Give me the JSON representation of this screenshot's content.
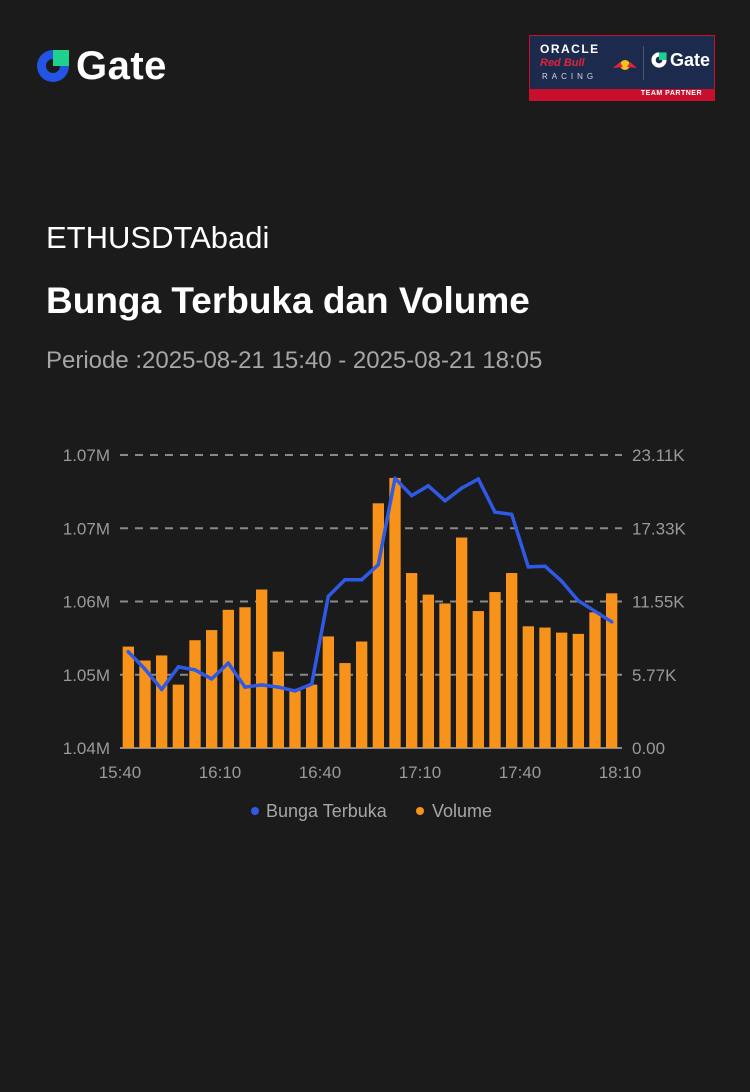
{
  "brand": {
    "name": "Gate",
    "icon": "gate-logo-icon",
    "color": "#2354e6",
    "accent": "#1fd18f"
  },
  "partner_badge": {
    "oracle": "ORACLE",
    "redbull": "Red Bull",
    "racing": "RACING",
    "gate": "Gate",
    "team_partner": "TEAM PARTNER"
  },
  "header": {
    "pair": "ETHUSDTAbadi",
    "title": "Bunga Terbuka dan Volume",
    "period": "Periode :2025-08-21 15:40 - 2025-08-21 18:05"
  },
  "chart_data": {
    "type": "bar+line",
    "x_ticks": [
      "15:40",
      "16:10",
      "16:40",
      "17:10",
      "17:40",
      "18:10"
    ],
    "y_left_ticks": [
      "1.04M",
      "1.05M",
      "1.06M",
      "1.07M",
      "1.07M"
    ],
    "y_right_ticks": [
      "0.00",
      "5.77K",
      "11.55K",
      "17.33K",
      "23.11K"
    ],
    "y_right_range": [
      0,
      23110
    ],
    "grid": "dashed-horizontal",
    "legend_position": "bottom",
    "colors": {
      "open_interest": "#2f5ae6",
      "volume": "#f7931a"
    },
    "series": [
      {
        "name": "Bunga Terbuka",
        "type": "line",
        "axis": "left",
        "values": [
          1.0528,
          1.0505,
          1.0478,
          1.0508,
          1.0504,
          1.0492,
          1.0513,
          1.0481,
          1.0484,
          1.0481,
          1.0476,
          1.0485,
          1.0602,
          1.0624,
          1.0624,
          1.0644,
          1.0759,
          1.0736,
          1.0749,
          1.0729,
          1.0746,
          1.0758,
          1.0714,
          1.0711,
          1.0641,
          1.0642,
          1.0622,
          1.0596,
          1.0582,
          1.0568
        ]
      },
      {
        "name": "Volume",
        "type": "bar",
        "axis": "right",
        "values": [
          8000,
          6900,
          7300,
          5000,
          8500,
          9300,
          10900,
          11100,
          12500,
          7600,
          4500,
          5000,
          8800,
          6700,
          8400,
          19300,
          21300,
          13800,
          12100,
          11400,
          16600,
          10800,
          12300,
          13800,
          9600,
          9500,
          9100,
          9000,
          10700,
          12200
        ]
      }
    ]
  }
}
